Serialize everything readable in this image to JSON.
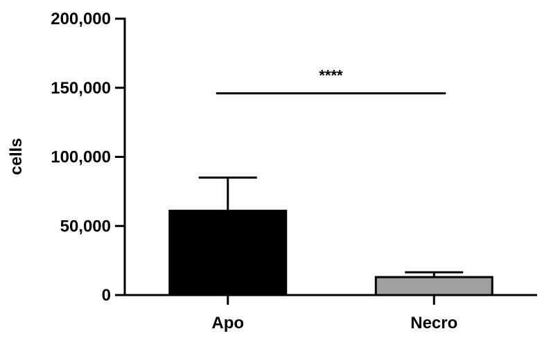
{
  "chart_data": {
    "type": "bar",
    "title": "",
    "xlabel": "",
    "ylabel": "cells",
    "ylim": [
      0,
      200000
    ],
    "yticks": [
      0,
      50000,
      100000,
      150000,
      200000
    ],
    "ytick_labels": [
      "0",
      "50,000",
      "100,000",
      "150,000",
      "200,000"
    ],
    "categories": [
      "Apo",
      "Necro"
    ],
    "values": [
      61000,
      13000
    ],
    "error_upper": [
      85000,
      16500
    ],
    "bar_colors": [
      "#000000",
      "#a0a0a0"
    ],
    "grid": false,
    "legend": "none",
    "annotations": [
      {
        "text": "****",
        "between": [
          "Apo",
          "Necro"
        ],
        "y": 146000
      }
    ]
  }
}
